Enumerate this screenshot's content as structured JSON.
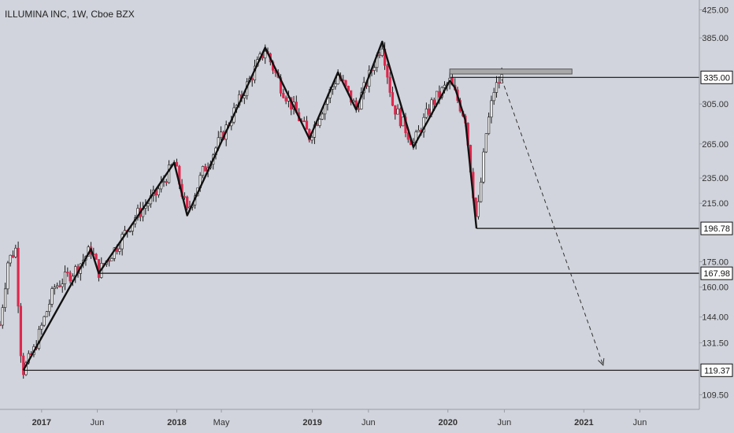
{
  "header": {
    "title": "ILLUMINA INC, 1W, Cboe BZX"
  },
  "colors": {
    "background": "#d1d4dc",
    "up_candle": "#f0f0f0",
    "down_candle": "#e0264c",
    "wick": "#1a1a1a",
    "pattern_line": "#111111",
    "level_line": "#111111",
    "label_bg": "#ffffff",
    "zone_fill": "#a9a9a9",
    "axis_text": "#333333"
  },
  "chart_data": {
    "type": "line",
    "title": "ILLUMINA INC, 1W, Cboe BZX",
    "xlabel": "",
    "ylabel": "",
    "y_scale": "log",
    "ylim": [
      104,
      440
    ],
    "xlim": [
      "2016-09-12",
      "2021-11-08"
    ],
    "grid": false,
    "legend": "none",
    "x_ticks": [
      {
        "date": "2017-01-02",
        "label": "2017"
      },
      {
        "date": "2017-06-01",
        "label": "Jun"
      },
      {
        "date": "2018-01-01",
        "label": "2018"
      },
      {
        "date": "2018-05-01",
        "label": "May"
      },
      {
        "date": "2019-01-01",
        "label": "2019"
      },
      {
        "date": "2019-06-01",
        "label": "Jun"
      },
      {
        "date": "2020-01-01",
        "label": "2020"
      },
      {
        "date": "2020-06-01",
        "label": "Jun"
      },
      {
        "date": "2021-01-01",
        "label": "2021"
      },
      {
        "date": "2021-06-01",
        "label": "Jun"
      }
    ],
    "y_ticks": [
      {
        "value": 425,
        "label": "425.00"
      },
      {
        "value": 385,
        "label": "385.00"
      },
      {
        "value": 305,
        "label": "305.00"
      },
      {
        "value": 265,
        "label": "265.00"
      },
      {
        "value": 235,
        "label": "235.00"
      },
      {
        "value": 215,
        "label": "215.00"
      },
      {
        "value": 175,
        "label": "175.00"
      },
      {
        "value": 160,
        "label": "160.00"
      },
      {
        "value": 144,
        "label": "144.00"
      },
      {
        "value": 131.5,
        "label": "131.50"
      },
      {
        "value": 109.5,
        "label": "109.50"
      }
    ],
    "level_labels": [
      {
        "value": 335,
        "label": "335.00",
        "from": "2020-01-08"
      },
      {
        "value": 196.78,
        "label": "196.78",
        "from": "2020-03-18"
      },
      {
        "value": 167.98,
        "label": "167.98",
        "from": "2017-06-05"
      },
      {
        "value": 119.37,
        "label": "119.37",
        "from": "2016-11-14"
      }
    ],
    "resistance_zone": {
      "from": "2020-01-06",
      "to": "2020-11-30",
      "low": 339,
      "high": 345
    },
    "pattern_lines": [
      {
        "x": "2016-11-14",
        "y": 119.37
      },
      {
        "x": "2017-05-15",
        "y": 183
      },
      {
        "x": "2017-06-05",
        "y": 167.98
      },
      {
        "x": "2017-12-25",
        "y": 248
      },
      {
        "x": "2018-01-29",
        "y": 206
      },
      {
        "x": "2018-08-27",
        "y": 372
      },
      {
        "x": "2018-12-24",
        "y": 270
      },
      {
        "x": "2019-03-11",
        "y": 341
      },
      {
        "x": "2019-04-29",
        "y": 299
      },
      {
        "x": "2019-07-08",
        "y": 380
      },
      {
        "x": "2019-09-30",
        "y": 262
      },
      {
        "x": "2020-01-06",
        "y": 331
      },
      {
        "x": "2020-01-20",
        "y": 323
      },
      {
        "x": "2020-02-17",
        "y": 288
      },
      {
        "x": "2020-03-18",
        "y": 196.78
      }
    ],
    "projection_arrow": {
      "from": {
        "x": "2020-05-25",
        "y": 333
      },
      "to": {
        "x": "2021-02-22",
        "y": 121.5
      }
    },
    "price_path": [
      {
        "x": "2016-09-12",
        "y": 140
      },
      {
        "x": "2016-10-03",
        "y": 175
      },
      {
        "x": "2016-10-24",
        "y": 183
      },
      {
        "x": "2016-11-07",
        "y": 128
      },
      {
        "x": "2016-11-14",
        "y": 119.37
      },
      {
        "x": "2016-12-12",
        "y": 128
      },
      {
        "x": "2017-02-06",
        "y": 160
      },
      {
        "x": "2017-04-03",
        "y": 170
      },
      {
        "x": "2017-05-15",
        "y": 183
      },
      {
        "x": "2017-06-05",
        "y": 169
      },
      {
        "x": "2017-07-24",
        "y": 185
      },
      {
        "x": "2017-09-11",
        "y": 205
      },
      {
        "x": "2017-11-06",
        "y": 222
      },
      {
        "x": "2017-12-25",
        "y": 248
      },
      {
        "x": "2018-01-29",
        "y": 208
      },
      {
        "x": "2018-03-12",
        "y": 240
      },
      {
        "x": "2018-05-07",
        "y": 275
      },
      {
        "x": "2018-07-02",
        "y": 320
      },
      {
        "x": "2018-08-27",
        "y": 370
      },
      {
        "x": "2018-10-08",
        "y": 325
      },
      {
        "x": "2018-12-24",
        "y": 272
      },
      {
        "x": "2019-03-11",
        "y": 338
      },
      {
        "x": "2019-04-29",
        "y": 300
      },
      {
        "x": "2019-07-08",
        "y": 378
      },
      {
        "x": "2019-08-05",
        "y": 305
      },
      {
        "x": "2019-09-30",
        "y": 265
      },
      {
        "x": "2019-11-18",
        "y": 305
      },
      {
        "x": "2020-01-06",
        "y": 330
      },
      {
        "x": "2020-02-17",
        "y": 290
      },
      {
        "x": "2020-03-18",
        "y": 200
      },
      {
        "x": "2020-04-13",
        "y": 275
      },
      {
        "x": "2020-05-04",
        "y": 320
      },
      {
        "x": "2020-05-25",
        "y": 335
      }
    ]
  }
}
